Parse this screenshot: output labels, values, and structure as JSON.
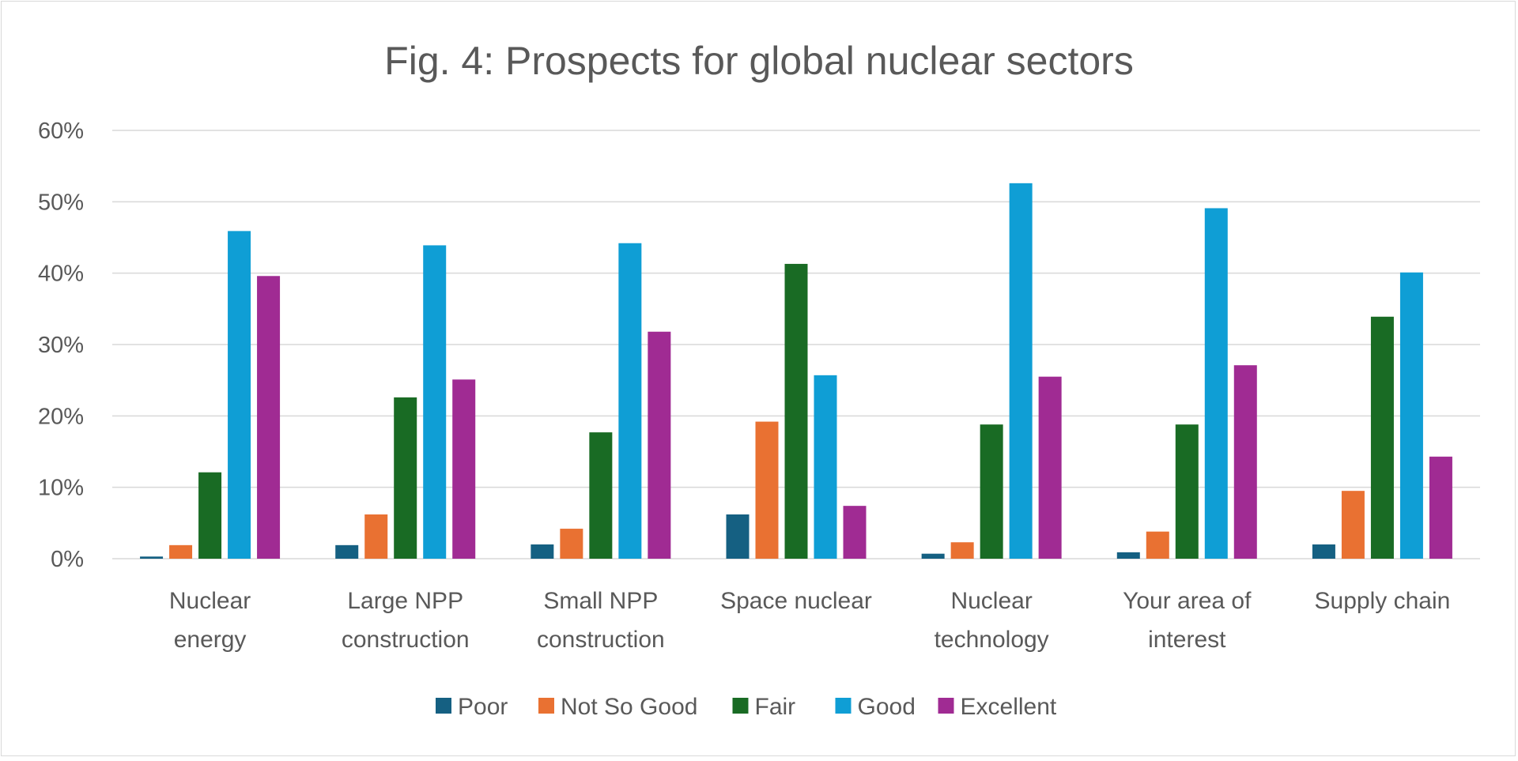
{
  "chart_data": {
    "type": "bar",
    "title": "Fig. 4: Prospects for global nuclear sectors",
    "xlabel": "",
    "ylabel": "",
    "ylim": [
      0,
      60
    ],
    "yticks": [
      "0%",
      "10%",
      "20%",
      "30%",
      "40%",
      "50%",
      "60%"
    ],
    "grid": true,
    "legend_position": "bottom",
    "categories": [
      [
        "Nuclear",
        "energy"
      ],
      [
        "Large NPP",
        "construction"
      ],
      [
        "Small NPP",
        "construction"
      ],
      [
        "Space nuclear"
      ],
      [
        "Nuclear",
        "technology"
      ],
      [
        "Your area of",
        "interest"
      ],
      [
        "Supply chain"
      ]
    ],
    "series": [
      {
        "name": "Poor",
        "color": "#156082",
        "values": [
          0.3,
          1.9,
          2.0,
          6.2,
          0.7,
          0.9,
          2.0
        ]
      },
      {
        "name": "Not So Good",
        "color": "#E97132",
        "values": [
          1.9,
          6.2,
          4.2,
          19.2,
          2.3,
          3.8,
          9.5
        ]
      },
      {
        "name": "Fair",
        "color": "#196B24",
        "values": [
          12.1,
          22.6,
          17.7,
          41.3,
          18.8,
          18.8,
          33.9
        ]
      },
      {
        "name": "Good",
        "color": "#0F9ED5",
        "values": [
          45.9,
          43.9,
          44.2,
          25.7,
          52.6,
          49.1,
          40.1
        ]
      },
      {
        "name": "Excellent",
        "color": "#A02B93",
        "values": [
          39.6,
          25.1,
          31.8,
          7.4,
          25.5,
          27.1,
          14.3
        ]
      }
    ]
  }
}
